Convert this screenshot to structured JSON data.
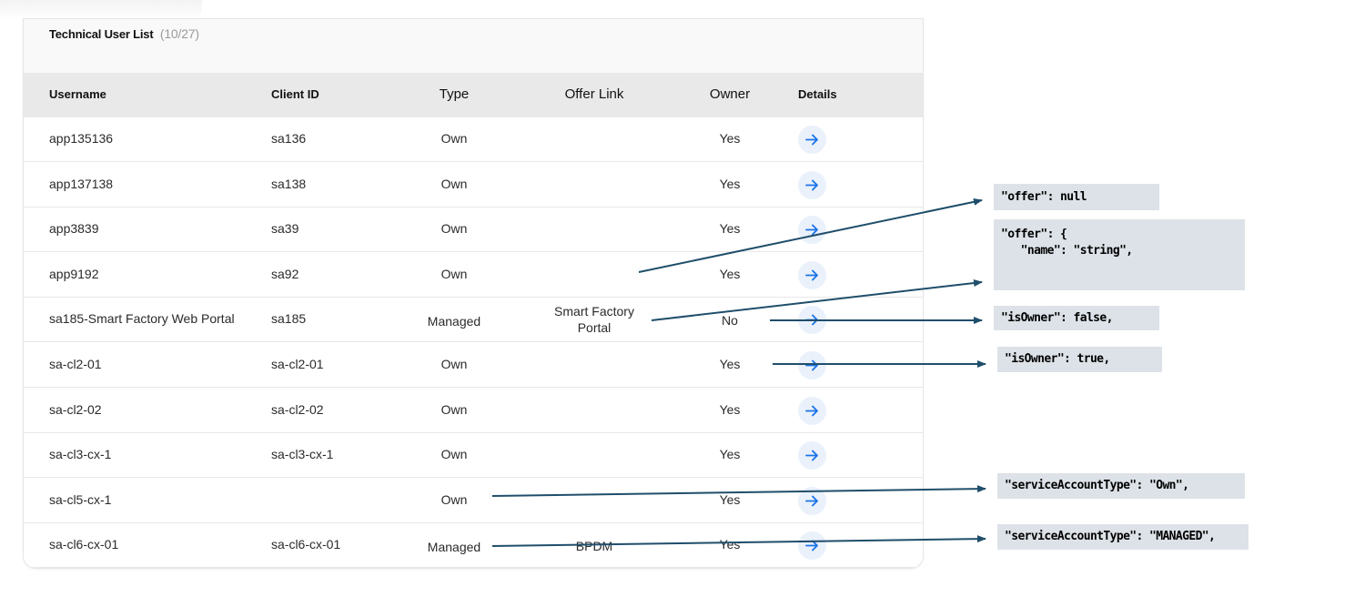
{
  "table": {
    "title": "Technical User List",
    "count": "(10/27)",
    "columns": {
      "username": "Username",
      "client_id": "Client ID",
      "type": "Type",
      "offer_link": "Offer Link",
      "owner": "Owner",
      "details": "Details"
    },
    "rows": [
      {
        "username": "app135136",
        "client_id": "sa136",
        "type": "Own",
        "offer_link": "",
        "owner": "Yes"
      },
      {
        "username": "app137138",
        "client_id": "sa138",
        "type": "Own",
        "offer_link": "",
        "owner": "Yes"
      },
      {
        "username": "app3839",
        "client_id": "sa39",
        "type": "Own",
        "offer_link": "",
        "owner": "Yes"
      },
      {
        "username": "app9192",
        "client_id": "sa92",
        "type": "Own",
        "offer_link": "",
        "owner": "Yes"
      },
      {
        "username": "sa185-Smart Factory Web Portal",
        "client_id": "sa185",
        "type": "Managed",
        "offer_link": "Smart Factory Portal",
        "owner": "No"
      },
      {
        "username": "sa-cl2-01",
        "client_id": "sa-cl2-01",
        "type": "Own",
        "offer_link": "",
        "owner": "Yes"
      },
      {
        "username": "sa-cl2-02",
        "client_id": "sa-cl2-02",
        "type": "Own",
        "offer_link": "",
        "owner": "Yes"
      },
      {
        "username": "sa-cl3-cx-1",
        "client_id": "sa-cl3-cx-1",
        "type": "Own",
        "offer_link": "",
        "owner": "Yes"
      },
      {
        "username": "sa-cl5-cx-1",
        "client_id": "",
        "type": "Own",
        "offer_link": "",
        "owner": "Yes"
      },
      {
        "username": "sa-cl6-cx-01",
        "client_id": "sa-cl6-cx-01",
        "type": "Managed",
        "offer_link": "BPDM",
        "owner": "Yes"
      }
    ]
  },
  "annotations": {
    "offer_null": "\"offer\": null",
    "offer_object": "\"offer\": {\n   \"name\": \"string\",",
    "is_owner_false": "\"isOwner\": false,",
    "is_owner_true": "\"isOwner\": true,",
    "service_own": "\"serviceAccountType\": \"Own\",",
    "service_managed": "\"serviceAccountType\": \"MANAGED\","
  },
  "icons": {
    "details": "arrow-right-icon"
  },
  "colors": {
    "accent": "#1a73e8",
    "arrow": "#1f4e6b",
    "note_bg": "#dde2e8"
  }
}
